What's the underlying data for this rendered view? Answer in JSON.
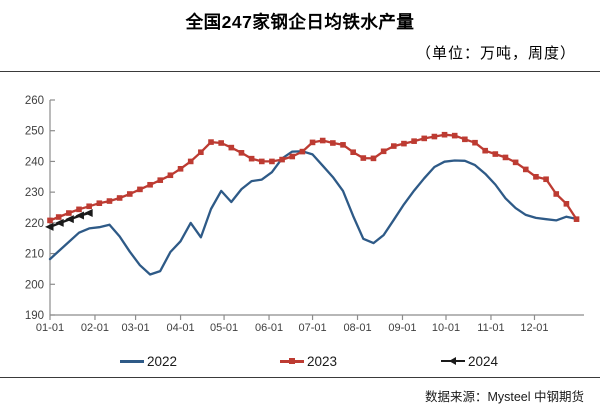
{
  "title": "全国247家钢企日均铁水产量",
  "subtitle": "（单位：万吨，周度）",
  "footer": {
    "source_label": "数据来源：Mysteel 中钢期货"
  },
  "colors": {
    "s2022": "#2e5a87",
    "s2023": "#bd3b32",
    "s2024": "#1a1a1a",
    "axis": "#8c8c8c",
    "tick_text": "#404040"
  },
  "legend": [
    {
      "label": "2022",
      "color": "#2e5a87",
      "marker": "none"
    },
    {
      "label": "2023",
      "color": "#bd3b32",
      "marker": "square"
    },
    {
      "label": "2024",
      "color": "#1a1a1a",
      "marker": "triangle-left"
    }
  ],
  "chart_data": {
    "type": "line",
    "title": "全国247家钢企日均铁水产量",
    "unit_note": "（单位：万吨，周度）",
    "xlabel": "",
    "ylabel": "",
    "ylim": [
      190,
      260
    ],
    "yticks": [
      190,
      200,
      210,
      220,
      230,
      240,
      250,
      260
    ],
    "xtick_labels": [
      "01-01",
      "02-01",
      "03-01",
      "04-01",
      "05-01",
      "06-01",
      "07-01",
      "08-01",
      "09-01",
      "10-01",
      "11-01",
      "12-01"
    ],
    "grid": false,
    "legend_position": "bottom",
    "series": [
      {
        "name": "2022",
        "color": "#2e5a87",
        "marker": "none",
        "points": [
          [
            "01-01",
            208.2
          ],
          [
            "01-07",
            210.8
          ],
          [
            "01-14",
            213.8
          ],
          [
            "01-21",
            216.8
          ],
          [
            "01-28",
            218.2
          ],
          [
            "02-04",
            218.6
          ],
          [
            "02-11",
            219.4
          ],
          [
            "02-18",
            215.6
          ],
          [
            "02-25",
            210.6
          ],
          [
            "03-04",
            206.2
          ],
          [
            "03-11",
            203.2
          ],
          [
            "03-18",
            204.3
          ],
          [
            "03-25",
            210.5
          ],
          [
            "04-01",
            214.0
          ],
          [
            "04-08",
            220.0
          ],
          [
            "04-15",
            215.3
          ],
          [
            "04-22",
            224.5
          ],
          [
            "04-29",
            230.4
          ],
          [
            "05-06",
            226.8
          ],
          [
            "05-13",
            231.0
          ],
          [
            "05-20",
            233.6
          ],
          [
            "05-27",
            234.1
          ],
          [
            "06-03",
            236.5
          ],
          [
            "06-10",
            241.0
          ],
          [
            "06-17",
            243.2
          ],
          [
            "06-24",
            243.3
          ],
          [
            "07-01",
            242.3
          ],
          [
            "07-08",
            238.6
          ],
          [
            "07-15",
            234.9
          ],
          [
            "07-22",
            230.4
          ],
          [
            "07-29",
            222.2
          ],
          [
            "08-05",
            214.8
          ],
          [
            "08-12",
            213.4
          ],
          [
            "08-19",
            216.0
          ],
          [
            "08-26",
            221.0
          ],
          [
            "09-02",
            226.0
          ],
          [
            "09-09",
            230.5
          ],
          [
            "09-16",
            234.5
          ],
          [
            "09-23",
            238.2
          ],
          [
            "09-30",
            239.9
          ],
          [
            "10-07",
            240.3
          ],
          [
            "10-14",
            240.2
          ],
          [
            "10-21",
            238.8
          ],
          [
            "10-28",
            236.0
          ],
          [
            "11-04",
            232.5
          ],
          [
            "11-11",
            228.0
          ],
          [
            "11-18",
            224.8
          ],
          [
            "11-25",
            222.6
          ],
          [
            "12-02",
            221.6
          ],
          [
            "12-09",
            221.2
          ],
          [
            "12-16",
            220.8
          ],
          [
            "12-23",
            222.0
          ],
          [
            "12-30",
            221.3
          ]
        ]
      },
      {
        "name": "2023",
        "color": "#bd3b32",
        "marker": "square",
        "points": [
          [
            "01-01",
            220.8
          ],
          [
            "01-07",
            221.9
          ],
          [
            "01-14",
            223.2
          ],
          [
            "01-21",
            224.4
          ],
          [
            "01-28",
            225.4
          ],
          [
            "02-04",
            226.4
          ],
          [
            "02-11",
            227.1
          ],
          [
            "02-18",
            228.1
          ],
          [
            "02-25",
            229.4
          ],
          [
            "03-04",
            230.9
          ],
          [
            "03-11",
            232.4
          ],
          [
            "03-18",
            233.9
          ],
          [
            "03-25",
            235.5
          ],
          [
            "04-01",
            237.6
          ],
          [
            "04-08",
            240.0
          ],
          [
            "04-15",
            243.0
          ],
          [
            "04-22",
            246.3
          ],
          [
            "04-29",
            246.0
          ],
          [
            "05-06",
            244.5
          ],
          [
            "05-13",
            242.8
          ],
          [
            "05-20",
            240.9
          ],
          [
            "05-27",
            240.0
          ],
          [
            "06-03",
            240.0
          ],
          [
            "06-10",
            240.6
          ],
          [
            "06-17",
            241.6
          ],
          [
            "06-24",
            243.2
          ],
          [
            "07-01",
            246.2
          ],
          [
            "07-08",
            246.8
          ],
          [
            "07-15",
            246.0
          ],
          [
            "07-22",
            245.4
          ],
          [
            "07-29",
            243.0
          ],
          [
            "08-05",
            241.1
          ],
          [
            "08-12",
            241.0
          ],
          [
            "08-19",
            243.3
          ],
          [
            "08-26",
            245.0
          ],
          [
            "09-02",
            245.8
          ],
          [
            "09-09",
            246.6
          ],
          [
            "09-16",
            247.5
          ],
          [
            "09-23",
            248.1
          ],
          [
            "09-30",
            248.7
          ],
          [
            "10-07",
            248.4
          ],
          [
            "10-14",
            247.2
          ],
          [
            "10-21",
            246.1
          ],
          [
            "10-28",
            243.5
          ],
          [
            "11-04",
            242.4
          ],
          [
            "11-11",
            241.3
          ],
          [
            "11-18",
            239.7
          ],
          [
            "11-25",
            237.4
          ],
          [
            "12-02",
            235.0
          ],
          [
            "12-09",
            234.2
          ],
          [
            "12-16",
            229.4
          ],
          [
            "12-23",
            226.2
          ],
          [
            "12-30",
            221.2
          ]
        ]
      },
      {
        "name": "2024",
        "color": "#1a1a1a",
        "marker": "triangle-left",
        "points": [
          [
            "01-01",
            218.7
          ],
          [
            "01-08",
            220.0
          ],
          [
            "01-15",
            221.2
          ],
          [
            "01-22",
            222.4
          ],
          [
            "01-28",
            223.2
          ]
        ]
      }
    ]
  }
}
